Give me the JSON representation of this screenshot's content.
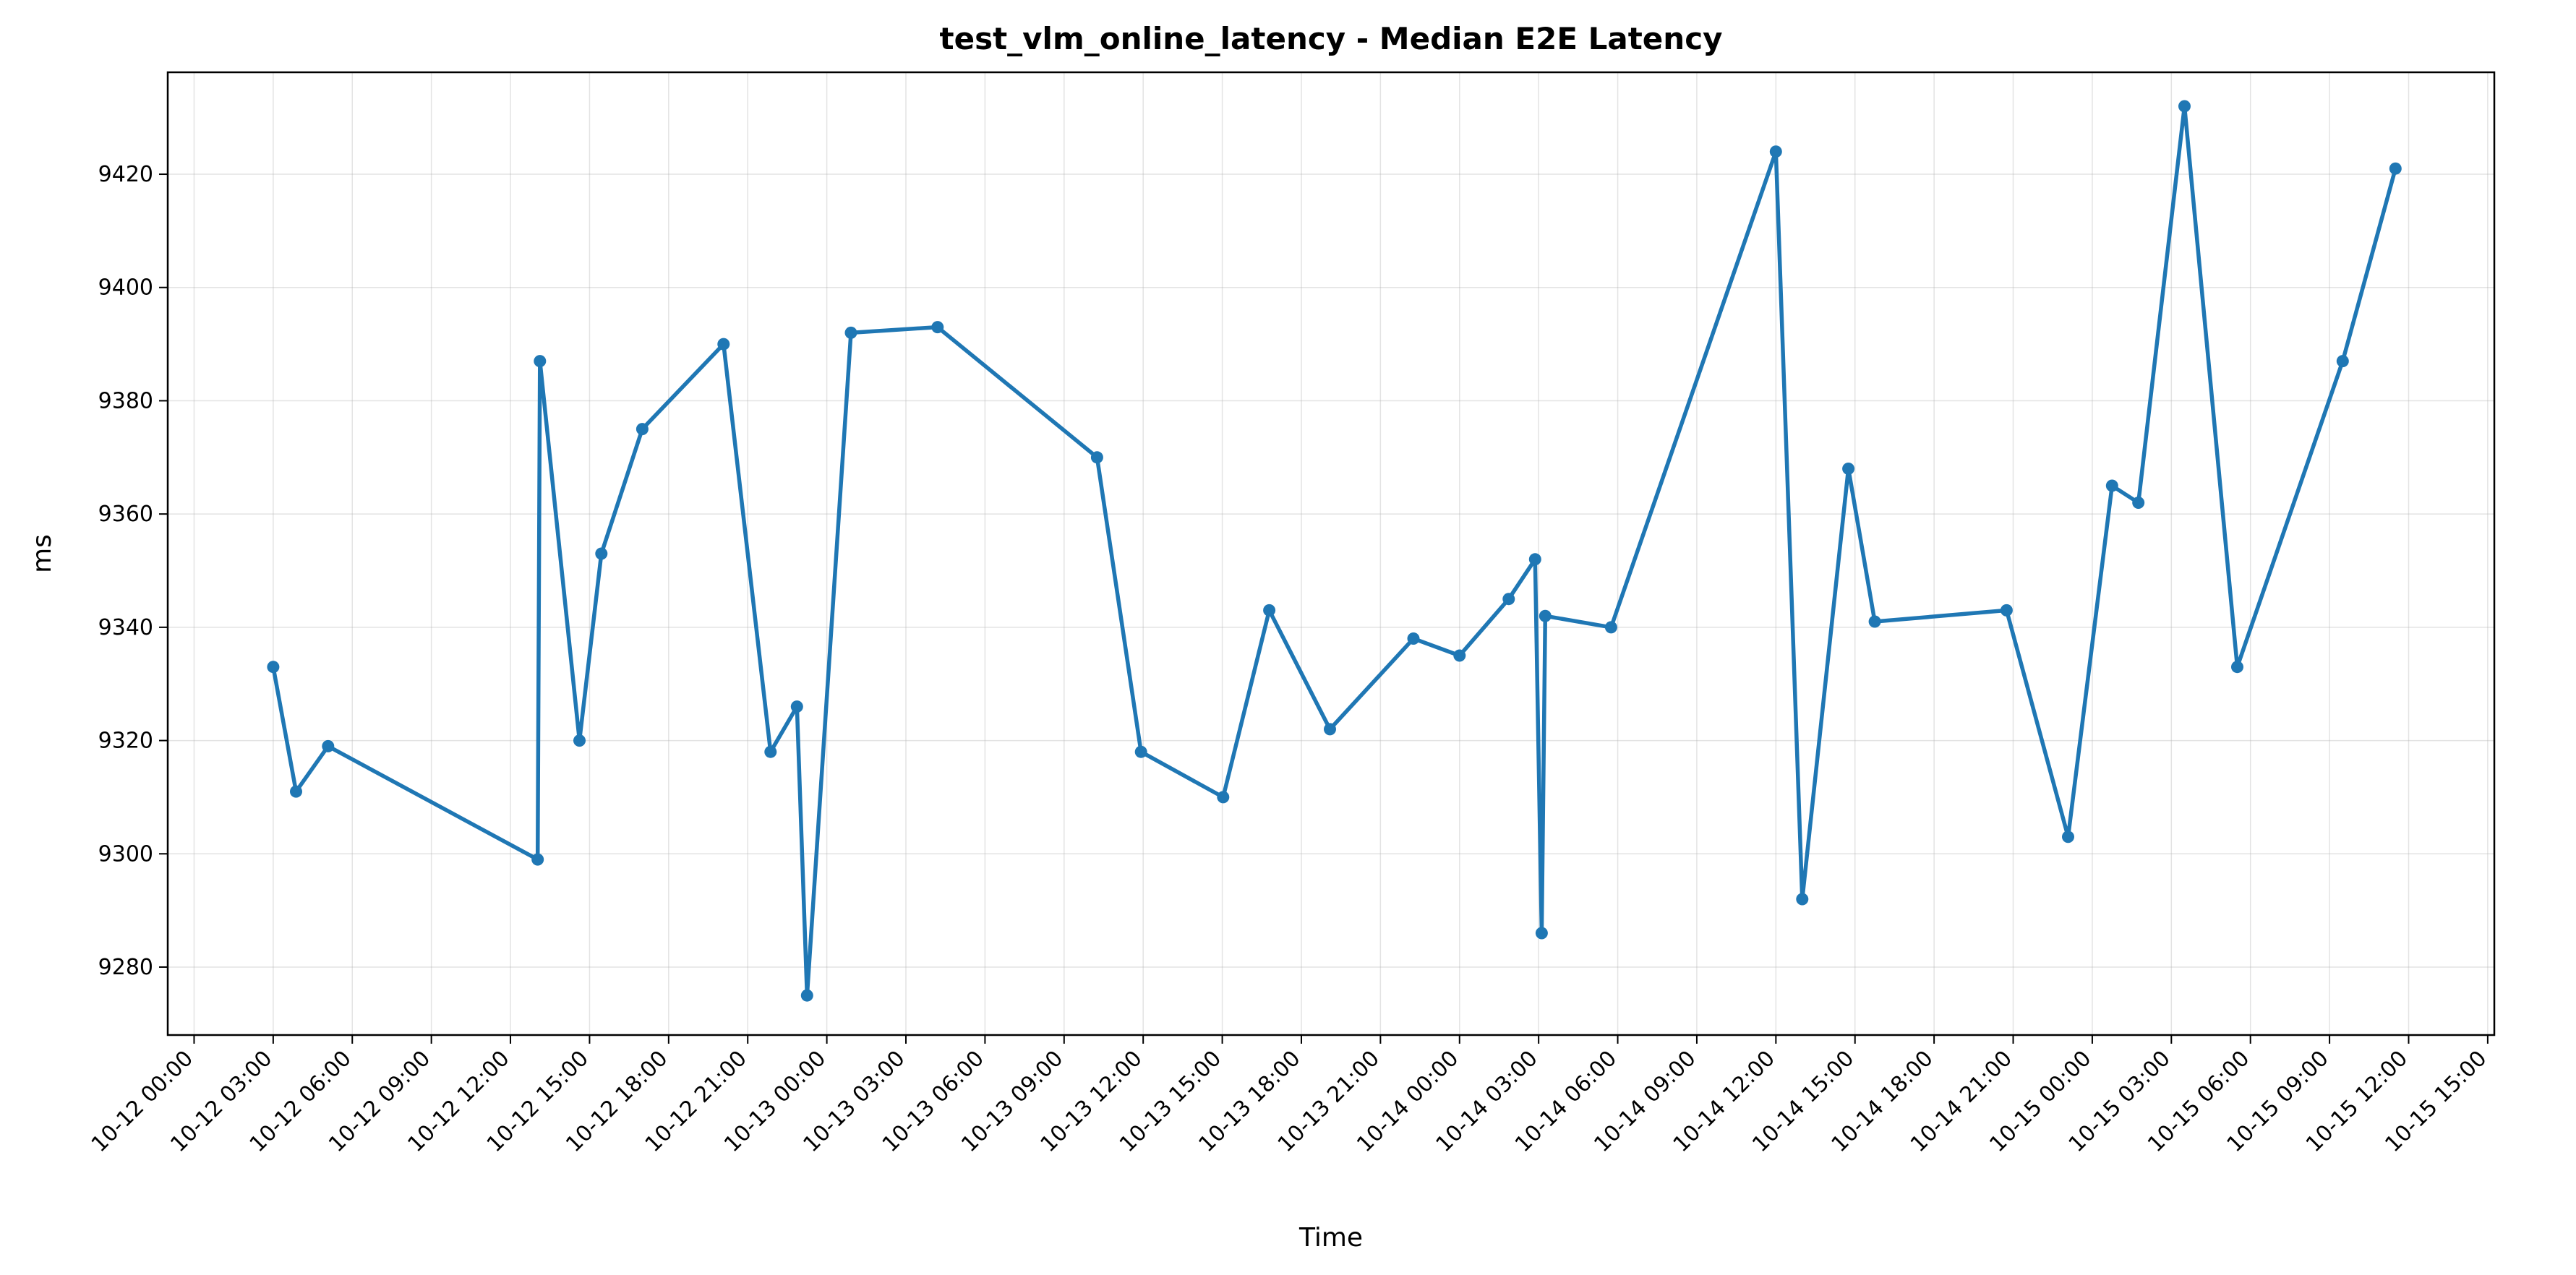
{
  "chart_data": {
    "type": "line",
    "title": "test_vlm_online_latency - Median E2E Latency",
    "xlabel": "Time",
    "ylabel": "ms",
    "x_type": "datetime",
    "xlim": [
      "2024-10-11T23:00",
      "2024-10-15T15:15"
    ],
    "ylim": [
      9268,
      9438
    ],
    "grid": true,
    "legend": "none",
    "x_ticks": [
      "10-12 00:00",
      "10-12 03:00",
      "10-12 06:00",
      "10-12 09:00",
      "10-12 12:00",
      "10-12 15:00",
      "10-12 18:00",
      "10-12 21:00",
      "10-13 00:00",
      "10-13 03:00",
      "10-13 06:00",
      "10-13 09:00",
      "10-13 12:00",
      "10-13 15:00",
      "10-13 18:00",
      "10-13 21:00",
      "10-14 00:00",
      "10-14 03:00",
      "10-14 06:00",
      "10-14 09:00",
      "10-14 12:00",
      "10-14 15:00",
      "10-14 18:00",
      "10-14 21:00",
      "10-15 00:00",
      "10-15 03:00",
      "10-15 06:00",
      "10-15 09:00",
      "10-15 12:00",
      "10-15 15:00"
    ],
    "y_ticks": [
      9280,
      9300,
      9320,
      9340,
      9360,
      9380,
      9400,
      9420
    ],
    "series": [
      {
        "color": "#1f77b4",
        "x": [
          "2024-10-12T03:00",
          "2024-10-12T03:52",
          "2024-10-12T05:05",
          "2024-10-12T13:02",
          "2024-10-12T13:07",
          "2024-10-12T14:37",
          "2024-10-12T15:27",
          "2024-10-12T17:00",
          "2024-10-12T20:05",
          "2024-10-12T21:52",
          "2024-10-12T22:52",
          "2024-10-12T23:15",
          "2024-10-13T00:55",
          "2024-10-13T04:12",
          "2024-10-13T10:15",
          "2024-10-13T11:55",
          "2024-10-13T15:02",
          "2024-10-13T16:47",
          "2024-10-13T19:05",
          "2024-10-13T22:15",
          "2024-10-14T00:00",
          "2024-10-14T01:52",
          "2024-10-14T02:52",
          "2024-10-14T03:07",
          "2024-10-14T03:15",
          "2024-10-14T05:45",
          "2024-10-14T12:00",
          "2024-10-14T13:00",
          "2024-10-14T14:45",
          "2024-10-14T15:45",
          "2024-10-14T20:45",
          "2024-10-14T23:05",
          "2024-10-15T00:45",
          "2024-10-15T01:45",
          "2024-10-15T03:30",
          "2024-10-15T05:30",
          "2024-10-15T09:30",
          "2024-10-15T11:30"
        ],
        "y": [
          9333,
          9311,
          9319,
          9299,
          9387,
          9320,
          9353,
          9375,
          9390,
          9318,
          9326,
          9275,
          9392,
          9393,
          9370,
          9318,
          9310,
          9343,
          9322,
          9338,
          9335,
          9345,
          9352,
          9286,
          9342,
          9340,
          9424,
          9292,
          9368,
          9341,
          9343,
          9303,
          9365,
          9362,
          9432,
          9333,
          9387,
          9421
        ]
      }
    ]
  }
}
